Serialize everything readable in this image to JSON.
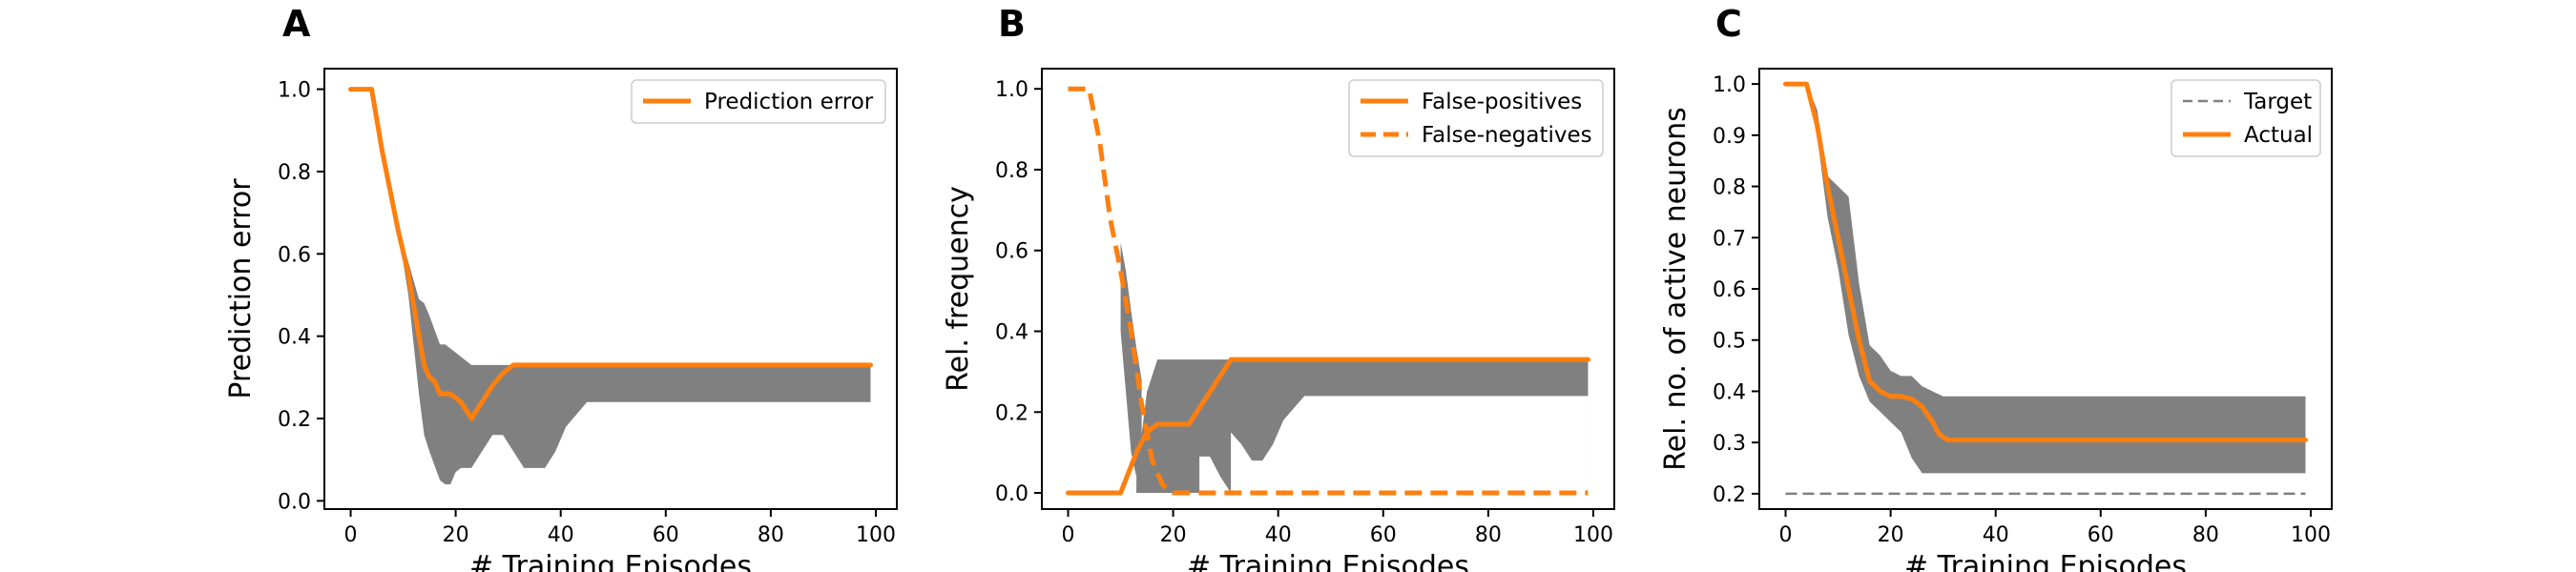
{
  "chart_data": [
    {
      "panel": "A",
      "type": "line",
      "xlabel": "# Training Episodes",
      "ylabel": "Prediction error",
      "xlim": [
        -5,
        104
      ],
      "ylim": [
        -0.02,
        1.05
      ],
      "xticks": [
        0,
        20,
        40,
        60,
        80,
        100
      ],
      "yticks": [
        0.0,
        0.2,
        0.4,
        0.6,
        0.8,
        1.0
      ],
      "ytick_labels": [
        "0.0",
        "0.2",
        "0.4",
        "0.6",
        "0.8",
        "1.0"
      ],
      "legend_position": "upper-right",
      "series": [
        {
          "name": "Prediction error",
          "style": "solid",
          "color": "#ff7f0e",
          "x": [
            0,
            4,
            6,
            9,
            11,
            13,
            14,
            15,
            16,
            17,
            19,
            21,
            23,
            25,
            27,
            29,
            31,
            35,
            99
          ],
          "y": [
            1.0,
            1.0,
            0.85,
            0.66,
            0.55,
            0.4,
            0.33,
            0.3,
            0.29,
            0.26,
            0.26,
            0.24,
            0.2,
            0.24,
            0.28,
            0.31,
            0.33,
            0.33,
            0.33
          ]
        }
      ],
      "band": {
        "color": "#808080",
        "x": [
          9,
          11,
          13,
          14,
          15,
          17,
          18,
          19,
          20,
          21,
          23,
          25,
          27,
          29,
          31,
          33,
          35,
          37,
          39,
          41,
          43,
          45,
          50,
          99
        ],
        "upper": [
          0.66,
          0.58,
          0.49,
          0.48,
          0.45,
          0.38,
          0.38,
          0.37,
          0.36,
          0.35,
          0.33,
          0.33,
          0.33,
          0.33,
          0.33,
          0.33,
          0.33,
          0.33,
          0.33,
          0.33,
          0.33,
          0.33,
          0.33,
          0.33
        ],
        "lower": [
          0.66,
          0.5,
          0.26,
          0.16,
          0.12,
          0.05,
          0.04,
          0.04,
          0.07,
          0.08,
          0.08,
          0.12,
          0.16,
          0.16,
          0.12,
          0.08,
          0.08,
          0.08,
          0.12,
          0.18,
          0.21,
          0.24,
          0.24,
          0.24
        ]
      }
    },
    {
      "panel": "B",
      "type": "line",
      "xlabel": "# Training Episodes",
      "ylabel": "Rel. frequency",
      "xlim": [
        -5,
        104
      ],
      "ylim": [
        -0.04,
        1.05
      ],
      "xticks": [
        0,
        20,
        40,
        60,
        80,
        100
      ],
      "yticks": [
        0.0,
        0.2,
        0.4,
        0.6,
        0.8,
        1.0
      ],
      "ytick_labels": [
        "0.0",
        "0.2",
        "0.4",
        "0.6",
        "0.8",
        "1.0"
      ],
      "legend_position": "upper-right",
      "series": [
        {
          "name": "False-positives",
          "style": "solid",
          "color": "#ff7f0e",
          "x": [
            0,
            10,
            13,
            15,
            17,
            19,
            21,
            23,
            25,
            27,
            29,
            31,
            35,
            99
          ],
          "y": [
            0.0,
            0.0,
            0.1,
            0.15,
            0.17,
            0.17,
            0.17,
            0.17,
            0.21,
            0.25,
            0.29,
            0.33,
            0.33,
            0.33
          ]
        },
        {
          "name": "False-negatives",
          "style": "dashed",
          "color": "#ff7f0e",
          "x": [
            0,
            4,
            6,
            8,
            10,
            12,
            14,
            16,
            18,
            20,
            22,
            30,
            99
          ],
          "y": [
            1.0,
            1.0,
            0.87,
            0.68,
            0.55,
            0.4,
            0.22,
            0.08,
            0.02,
            0.0,
            0.0,
            0.0,
            0.0
          ]
        }
      ],
      "bands": [
        {
          "color": "#808080",
          "x": [
            10,
            11,
            12,
            13,
            14
          ],
          "upper": [
            0.62,
            0.55,
            0.45,
            0.36,
            0.28
          ],
          "lower": [
            0.4,
            0.25,
            0.1,
            0.04,
            0.12
          ]
        },
        {
          "color": "#808080",
          "x": [
            13,
            15,
            16,
            17,
            19,
            21,
            23,
            25,
            27,
            29,
            31,
            33,
            35,
            37,
            39,
            41,
            43,
            45,
            50,
            99
          ],
          "upper": [
            0.04,
            0.25,
            0.29,
            0.33,
            0.33,
            0.33,
            0.33,
            0.33,
            0.33,
            0.33,
            0.33,
            0.33,
            0.33,
            0.33,
            0.33,
            0.33,
            0.33,
            0.33,
            0.33,
            0.33
          ],
          "lower": [
            0.0,
            0.0,
            0.0,
            0.0,
            0.0,
            0.0,
            0.0,
            0.0,
            0.0,
            0.0,
            0.0,
            0.0,
            0.0,
            0.0,
            0.0,
            0.0,
            0.0,
            0.0,
            0.0,
            0.0
          ]
        }
      ],
      "band_holes": [
        {
          "x": [
            25,
            27,
            29,
            31
          ],
          "upper": [
            0.09,
            0.09,
            0.04,
            0.0
          ],
          "lower": [
            0.0,
            0.0,
            0.0,
            0.0
          ]
        },
        {
          "x": [
            31,
            33,
            35,
            37,
            39,
            41,
            43,
            45,
            50,
            99
          ],
          "upper": [
            0.15,
            0.12,
            0.08,
            0.08,
            0.12,
            0.18,
            0.21,
            0.24,
            0.24,
            0.24
          ],
          "lower": [
            0.0,
            0.0,
            0.0,
            0.0,
            0.0,
            0.0,
            0.0,
            0.0,
            0.0,
            0.0
          ]
        }
      ]
    },
    {
      "panel": "C",
      "type": "line",
      "xlabel": "# Training Episodes",
      "ylabel": "Rel. no. of active neurons",
      "xlim": [
        -5,
        104
      ],
      "ylim": [
        0.17,
        1.03
      ],
      "xticks": [
        0,
        20,
        40,
        60,
        80,
        100
      ],
      "yticks": [
        0.2,
        0.3,
        0.4,
        0.5,
        0.6,
        0.7,
        0.8,
        0.9,
        1.0
      ],
      "ytick_labels": [
        "0.2",
        "0.3",
        "0.4",
        "0.5",
        "0.6",
        "0.7",
        "0.8",
        "0.9",
        "1.0"
      ],
      "legend_position": "upper-right",
      "series": [
        {
          "name": "Target",
          "style": "dashed-thin",
          "color": "#808080",
          "x": [
            0,
            99
          ],
          "y": [
            0.2,
            0.2
          ]
        },
        {
          "name": "Actual",
          "style": "solid",
          "color": "#ff7f0e",
          "x": [
            0,
            4,
            6,
            8,
            10,
            12,
            14,
            16,
            18,
            20,
            22,
            24,
            26,
            28,
            29,
            30,
            31,
            35,
            99
          ],
          "y": [
            1.0,
            1.0,
            0.92,
            0.8,
            0.7,
            0.6,
            0.5,
            0.42,
            0.4,
            0.39,
            0.39,
            0.385,
            0.37,
            0.34,
            0.32,
            0.31,
            0.305,
            0.305,
            0.305
          ]
        }
      ],
      "band": {
        "color": "#808080",
        "x": [
          4,
          6,
          8,
          10,
          12,
          14,
          16,
          18,
          20,
          22,
          24,
          26,
          28,
          30,
          32,
          35,
          40,
          99
        ],
        "upper": [
          1.0,
          0.95,
          0.82,
          0.8,
          0.78,
          0.61,
          0.49,
          0.47,
          0.44,
          0.43,
          0.43,
          0.41,
          0.4,
          0.39,
          0.39,
          0.39,
          0.39,
          0.39
        ],
        "lower": [
          1.0,
          0.9,
          0.74,
          0.64,
          0.51,
          0.43,
          0.38,
          0.36,
          0.34,
          0.32,
          0.27,
          0.24,
          0.24,
          0.24,
          0.24,
          0.24,
          0.24,
          0.24
        ]
      }
    }
  ]
}
